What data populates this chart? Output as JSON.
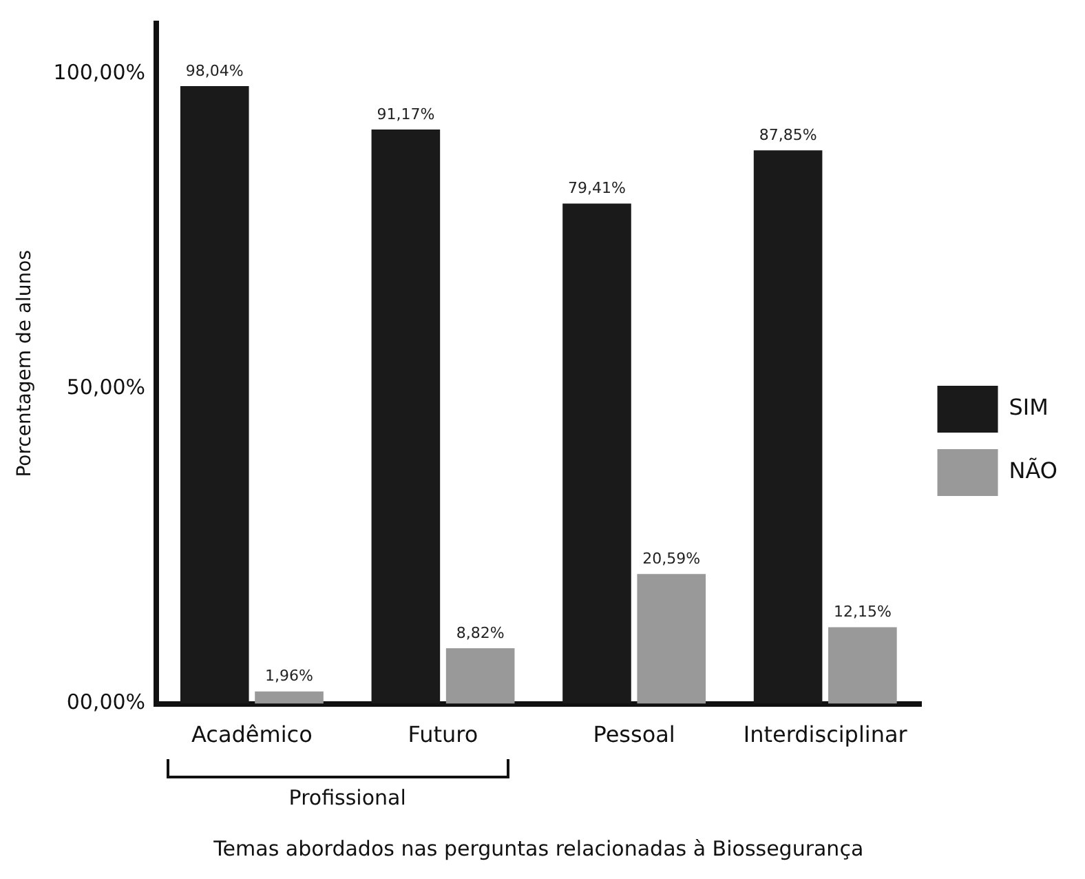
{
  "chart_data": {
    "type": "bar",
    "xlabel": "Temas abordados nas perguntas relacionadas à Biossegurança",
    "ylabel": "Porcentagem de alunos",
    "categories": [
      "Acadêmico",
      "Futuro",
      "Pessoal",
      "Interdisciplinar"
    ],
    "series": [
      {
        "name": "SIM",
        "color": "#1a1a1a",
        "values": [
          98.04,
          91.17,
          79.41,
          87.85
        ],
        "value_labels": [
          "98,04%",
          "91,17%",
          "79,41%",
          "87,85%"
        ]
      },
      {
        "name": "NÃO",
        "color": "#999999",
        "values": [
          1.96,
          8.82,
          20.59,
          12.15
        ],
        "value_labels": [
          "1,96%",
          "8,82%",
          "20,59%",
          "12,15%"
        ]
      }
    ],
    "ylim": [
      0,
      108
    ],
    "yticks": [
      {
        "value": 0,
        "label": "00,00%"
      },
      {
        "value": 50,
        "label": "50,00%"
      },
      {
        "value": 100,
        "label": "100,00%"
      }
    ],
    "grid": false,
    "legend": "right",
    "annotations": [
      {
        "text": "Profissional"
      }
    ]
  }
}
